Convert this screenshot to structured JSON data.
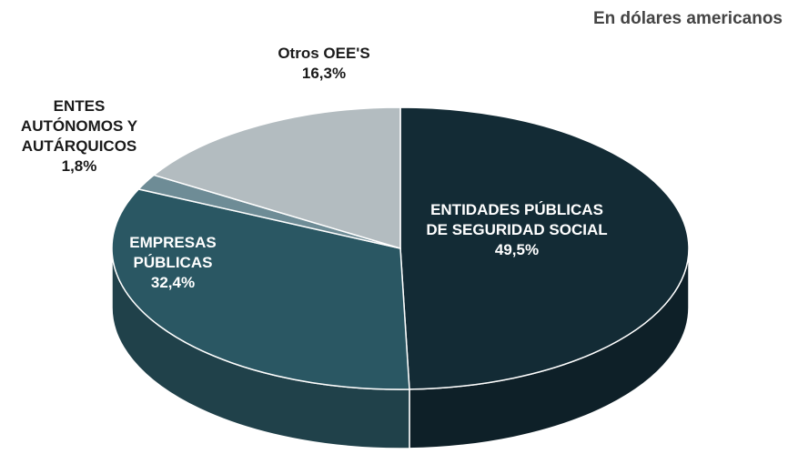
{
  "chart_data": {
    "type": "pie",
    "subtitle": "En dólares americanos",
    "categories": [
      "ENTIDADES PÚBLICAS\nDE SEGURIDAD SOCIAL",
      "EMPRESAS\nPÚBLICAS",
      "ENTES\nAUTÓNOMOS Y\nAUTÁRQUICOS",
      "Otros OEE'S"
    ],
    "values": [
      49.5,
      32.4,
      1.8,
      16.3
    ],
    "value_labels": [
      "49,5%",
      "32,4%",
      "1,8%",
      "16,3%"
    ],
    "colors": [
      "#132b35",
      "#2a5763",
      "#6e8c96",
      "#b3bcc0"
    ]
  }
}
